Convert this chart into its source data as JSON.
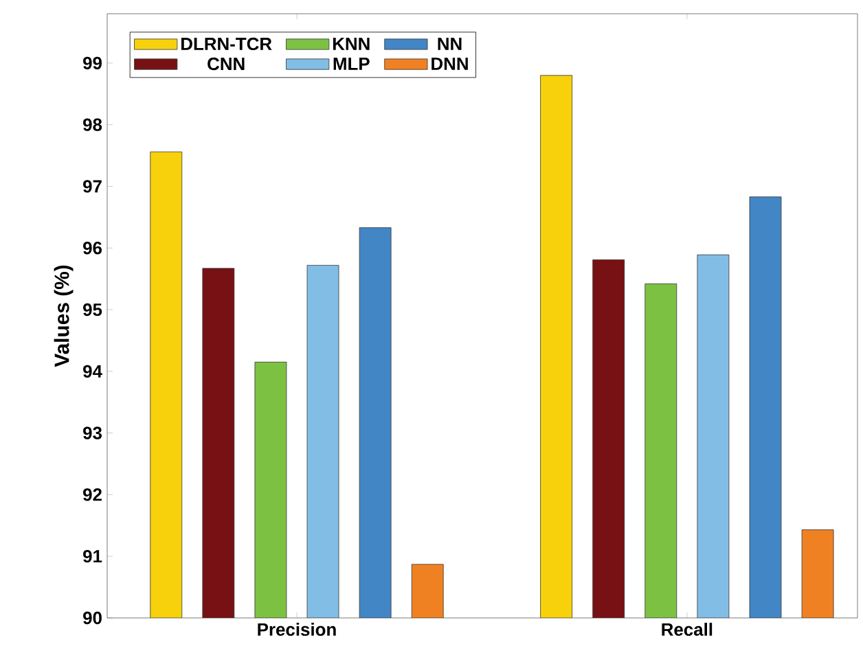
{
  "chart_data": {
    "type": "bar",
    "ylabel": "Values (%)",
    "categories": [
      "Precision",
      "Recall"
    ],
    "series": [
      {
        "name": "DLRN-TCR",
        "color": "#f7d10b",
        "values": [
          97.56,
          98.8
        ]
      },
      {
        "name": "CNN",
        "color": "#771114",
        "values": [
          95.67,
          95.81
        ]
      },
      {
        "name": "KNN",
        "color": "#7dc143",
        "values": [
          94.15,
          95.42
        ]
      },
      {
        "name": "MLP",
        "color": "#82bde6",
        "values": [
          95.72,
          95.89
        ]
      },
      {
        "name": "NN",
        "color": "#4286c6",
        "values": [
          96.33,
          96.83
        ]
      },
      {
        "name": "DNN",
        "color": "#f08122",
        "values": [
          90.87,
          91.43
        ]
      }
    ],
    "ylim": [
      90,
      99.8
    ],
    "yticks": [
      90,
      91,
      92,
      93,
      94,
      95,
      96,
      97,
      98,
      99
    ],
    "legend": "top left",
    "grid": false
  }
}
